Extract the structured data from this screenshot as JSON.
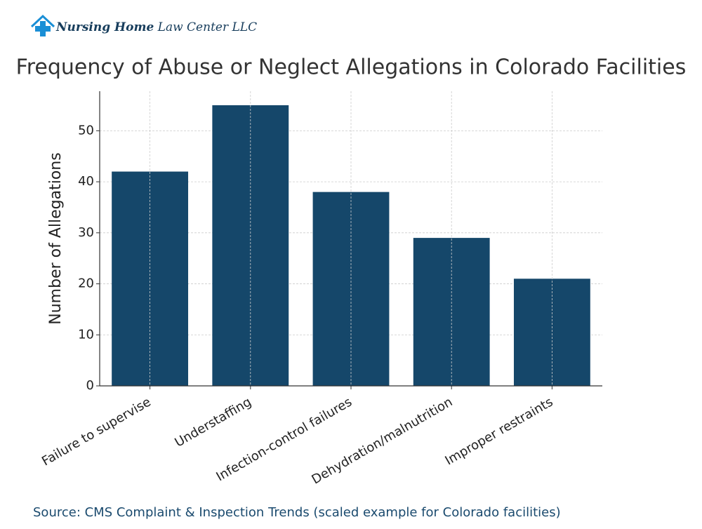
{
  "logo": {
    "brand": "Nursing Home",
    "rest": "Law Center LLC"
  },
  "chart_data": {
    "type": "bar",
    "title": "Frequency of Abuse or Neglect Allegations in Colorado Facilities",
    "y_label": "Number of Allegations",
    "categories": [
      "Failure to supervise",
      "Understaffing",
      "Infection-control failures",
      "Dehydration/malnutrition",
      "Improper restraints"
    ],
    "values": [
      42,
      55,
      38,
      29,
      21
    ],
    "color": "#15476a",
    "ylim": [
      0,
      57.75
    ],
    "yticks": [
      0,
      10,
      20,
      30,
      40,
      50
    ],
    "grid": true,
    "source": "Source: CMS Complaint & Inspection Trends (scaled example for Colorado facilities)"
  }
}
